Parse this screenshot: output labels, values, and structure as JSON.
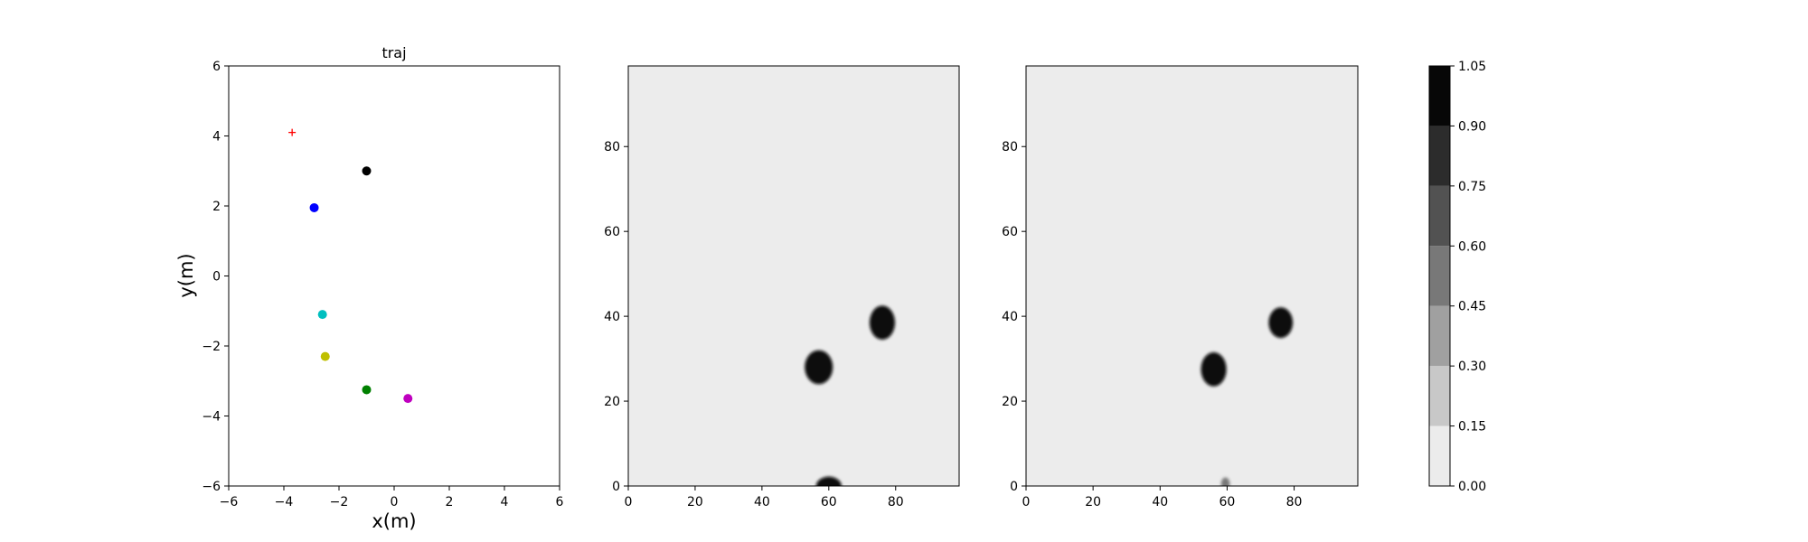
{
  "chart_data": [
    {
      "type": "scatter",
      "title": "traj",
      "xlabel": "x(m)",
      "ylabel": "y(m)",
      "xlim": [
        -6,
        6
      ],
      "ylim": [
        -6,
        6
      ],
      "xticks": [
        -6,
        -4,
        -2,
        0,
        2,
        4,
        6
      ],
      "yticks": [
        -6,
        -4,
        -2,
        0,
        2,
        4,
        6
      ],
      "xtick_labels": [
        "−6",
        "−4",
        "−2",
        "0",
        "2",
        "4",
        "6"
      ],
      "ytick_labels": [
        "−6",
        "−4",
        "−2",
        "0",
        "2",
        "4",
        "6"
      ],
      "grid": false,
      "goal_marker": {
        "shape": "plus",
        "color": "#ff0000",
        "x": -3.7,
        "y": 4.1
      },
      "points": [
        {
          "x": -1.0,
          "y": 3.0,
          "color": "#000000"
        },
        {
          "x": -2.9,
          "y": 1.95,
          "color": "#0000ff"
        },
        {
          "x": -2.6,
          "y": -1.1,
          "color": "#00bfbf"
        },
        {
          "x": -2.5,
          "y": -2.3,
          "color": "#bfbf00"
        },
        {
          "x": -1.0,
          "y": -3.25,
          "color": "#008000"
        },
        {
          "x": 0.5,
          "y": -3.5,
          "color": "#bf00bf"
        }
      ]
    },
    {
      "type": "heatmap",
      "xlim": [
        0,
        99
      ],
      "ylim": [
        0,
        99
      ],
      "xticks": [
        0,
        20,
        40,
        60,
        80
      ],
      "yticks": [
        0,
        20,
        40,
        60,
        80
      ],
      "background_value": 0.0,
      "blobs": [
        {
          "cx": 57,
          "cy": 28,
          "rx": 4.2,
          "ry": 4.0,
          "value": 1.0
        },
        {
          "cx": 76,
          "cy": 38.5,
          "rx": 3.8,
          "ry": 4.0,
          "value": 1.0
        },
        {
          "cx": 60,
          "cy": 0,
          "rx": 3.8,
          "ry": 2.2,
          "value": 1.0
        }
      ]
    },
    {
      "type": "heatmap",
      "xlim": [
        0,
        99
      ],
      "ylim": [
        0,
        99
      ],
      "xticks": [
        0,
        20,
        40,
        60,
        80
      ],
      "yticks": [
        0,
        20,
        40,
        60,
        80
      ],
      "background_value": 0.0,
      "blobs": [
        {
          "cx": 56,
          "cy": 27.5,
          "rx": 3.8,
          "ry": 4.0,
          "value": 1.0
        },
        {
          "cx": 76,
          "cy": 38.5,
          "rx": 3.6,
          "ry": 3.6,
          "value": 1.0
        },
        {
          "cx": 59.5,
          "cy": 0.5,
          "rx": 1.3,
          "ry": 1.5,
          "value": 0.45
        }
      ]
    }
  ],
  "colorbar": {
    "levels": [
      0.0,
      0.15,
      0.3,
      0.45,
      0.6,
      0.75,
      0.9,
      1.05
    ],
    "labels": [
      "0.00",
      "0.15",
      "0.30",
      "0.45",
      "0.60",
      "0.75",
      "0.90",
      "1.05"
    ],
    "colors": [
      "#ececec",
      "#c8c8c8",
      "#a0a0a0",
      "#787878",
      "#525252",
      "#2c2c2c",
      "#070707"
    ]
  }
}
